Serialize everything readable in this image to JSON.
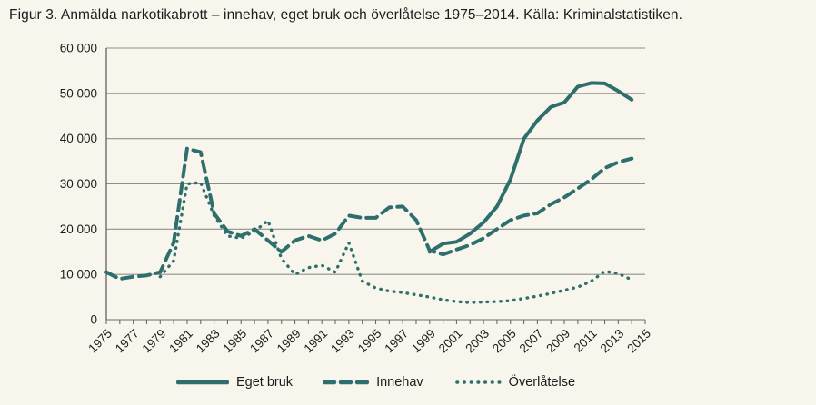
{
  "title": "Figur 3. Anmälda narkotikabrott – innehav, eget bruk och överlåtelse 1975–2014. Källa: Kriminalstatistiken.",
  "colors": {
    "background": "#f8f5ed",
    "line": "#2e6f6d",
    "grid": "#8f8f8a",
    "axis": "#6b6b66",
    "text": "#1b1b1b"
  },
  "chart_data": {
    "type": "line",
    "title": "Figur 3. Anmälda narkotikabrott – innehav, eget bruk och överlåtelse 1975–2014. Källa: Kriminalstatistiken.",
    "xlabel": "",
    "ylabel": "",
    "x_min": 1975,
    "x_max": 2015,
    "x_label_step": 2,
    "x_tick_labels": [
      "1975",
      "1977",
      "1979",
      "1981",
      "1983",
      "1985",
      "1987",
      "1989",
      "1991",
      "1993",
      "1995",
      "1997",
      "1999",
      "2001",
      "2003",
      "2005",
      "2007",
      "2009",
      "2011",
      "2013",
      "2015"
    ],
    "ylim": [
      0,
      60000
    ],
    "y_ticks": [
      0,
      10000,
      20000,
      30000,
      40000,
      50000,
      60000
    ],
    "y_tick_labels": [
      "0",
      "10 000",
      "20 000",
      "30 000",
      "40 000",
      "50 000",
      "60 000"
    ],
    "grid": "horizontal",
    "legend_position": "bottom",
    "x": [
      1975,
      1976,
      1977,
      1978,
      1979,
      1980,
      1981,
      1982,
      1983,
      1984,
      1985,
      1986,
      1987,
      1988,
      1989,
      1990,
      1991,
      1992,
      1993,
      1994,
      1995,
      1996,
      1997,
      1998,
      1999,
      2000,
      2001,
      2002,
      2003,
      2004,
      2005,
      2006,
      2007,
      2008,
      2009,
      2010,
      2011,
      2012,
      2013,
      2014
    ],
    "series": [
      {
        "name": "Eget bruk",
        "style": "solid",
        "values": [
          null,
          null,
          null,
          null,
          null,
          null,
          null,
          null,
          null,
          null,
          null,
          null,
          null,
          null,
          null,
          null,
          null,
          null,
          null,
          null,
          null,
          null,
          null,
          null,
          15000,
          16800,
          17200,
          19000,
          21500,
          25000,
          31000,
          40000,
          44000,
          47000,
          48000,
          51500,
          52300,
          52200,
          50500,
          48600
        ]
      },
      {
        "name": "Innehav",
        "style": "dashed",
        "values": [
          10500,
          9000,
          9500,
          9800,
          10500,
          17000,
          37800,
          37000,
          23500,
          19500,
          18500,
          20000,
          17500,
          15000,
          17500,
          18500,
          17500,
          19000,
          23000,
          22500,
          22500,
          24800,
          25000,
          22000,
          15300,
          14400,
          15500,
          16500,
          18000,
          20000,
          22000,
          23000,
          23500,
          25500,
          27000,
          29000,
          31000,
          33500,
          34800,
          35600
        ]
      },
      {
        "name": "Överlåtelse",
        "style": "dotted",
        "values": [
          null,
          null,
          null,
          null,
          9500,
          13000,
          30000,
          30300,
          23000,
          18500,
          18000,
          19500,
          21900,
          13500,
          10000,
          11500,
          12000,
          10500,
          17000,
          8500,
          7000,
          6300,
          6000,
          5500,
          5000,
          4400,
          4000,
          3800,
          3900,
          4000,
          4200,
          4700,
          5200,
          5800,
          6500,
          7200,
          8500,
          10700,
          10200,
          8800
        ]
      }
    ]
  }
}
